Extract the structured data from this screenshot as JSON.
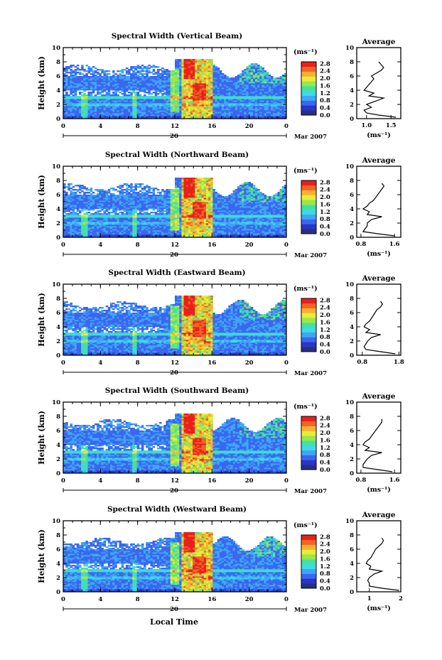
{
  "page": {
    "xlabel": "Local Time",
    "date_label": "20",
    "month_label": "Mar 2007"
  },
  "colorbar": {
    "unit": "(ms⁻¹)",
    "ticks": [
      "0.0",
      "0.4",
      "0.8",
      "1.2",
      "1.6",
      "2.0",
      "2.4",
      "2.8"
    ],
    "colors": [
      "#2a2f7e",
      "#2b35c7",
      "#3a67f0",
      "#3fa6f5",
      "#3fd8e8",
      "#44e0a0",
      "#98e84a",
      "#e8ec3c",
      "#f8b030",
      "#f26424",
      "#e8201c"
    ]
  },
  "chart_data": [
    {
      "type": "heatmap",
      "title": "Spectral Width (Vertical Beam)",
      "ylabel": "Height (km)",
      "xticks": [
        "0",
        "4",
        "8",
        "12",
        "16",
        "20",
        "0"
      ],
      "yticks": [
        "0",
        "2",
        "4",
        "6",
        "8",
        "10"
      ],
      "xlim": [
        0,
        24
      ],
      "ylim": [
        0,
        10
      ],
      "clim": [
        0,
        2.8
      ],
      "profile": {
        "title": "Average",
        "xlabel": "(ms⁻¹)",
        "xticks": [
          "1.0",
          "1.5"
        ],
        "xtick_values": [
          1.0,
          1.5
        ],
        "xlim": [
          0.8,
          1.7
        ],
        "heights": [
          0.2,
          0.5,
          0.8,
          1.2,
          1.6,
          2.0,
          2.5,
          2.9,
          3.2,
          3.6,
          4.0,
          4.4,
          4.8,
          5.2,
          5.6,
          6.0,
          6.4,
          6.8,
          7.2,
          7.6,
          8.0
        ],
        "values": [
          1.6,
          1.25,
          1.0,
          0.95,
          1.1,
          1.0,
          1.2,
          1.35,
          1.05,
          1.15,
          0.95,
          1.0,
          1.05,
          1.1,
          1.15,
          1.1,
          1.2,
          1.3,
          1.35,
          1.3,
          1.25
        ]
      }
    },
    {
      "type": "heatmap",
      "title": "Spectral Width (Northward Beam)",
      "ylabel": "Height (km)",
      "xticks": [
        "0",
        "4",
        "8",
        "12",
        "16",
        "20",
        "0"
      ],
      "yticks": [
        "0",
        "2",
        "4",
        "6",
        "8",
        "10"
      ],
      "xlim": [
        0,
        24
      ],
      "ylim": [
        0,
        10
      ],
      "clim": [
        0,
        2.8
      ],
      "profile": {
        "title": "Average",
        "xlabel": "(ms⁻¹)",
        "xticks": [
          "0.8",
          "1.6"
        ],
        "xtick_values": [
          0.8,
          1.6
        ],
        "xlim": [
          0.7,
          1.75
        ],
        "heights": [
          0.2,
          0.5,
          0.8,
          1.2,
          1.6,
          2.0,
          2.5,
          2.9,
          3.2,
          3.6,
          4.0,
          4.4,
          4.8,
          5.2,
          5.6,
          6.0,
          6.4,
          6.8,
          7.2,
          7.6
        ],
        "values": [
          1.6,
          1.2,
          0.85,
          0.9,
          0.95,
          0.95,
          1.05,
          1.3,
          0.95,
          1.0,
          0.85,
          0.95,
          1.0,
          1.1,
          1.15,
          1.2,
          1.25,
          1.3,
          1.35,
          1.3
        ]
      }
    },
    {
      "type": "heatmap",
      "title": "Spectral Width (Eastward Beam)",
      "ylabel": "Height (km)",
      "xticks": [
        "0",
        "4",
        "8",
        "12",
        "16",
        "20",
        "0"
      ],
      "yticks": [
        "0",
        "2",
        "4",
        "6",
        "8",
        "10"
      ],
      "xlim": [
        0,
        24
      ],
      "ylim": [
        0,
        10
      ],
      "clim": [
        0,
        2.8
      ],
      "profile": {
        "title": "Average",
        "xlabel": "",
        "xticks": [
          "0.8",
          "1.8"
        ],
        "xtick_values": [
          0.8,
          1.8
        ],
        "xlim": [
          0.65,
          1.85
        ],
        "heights": [
          0.2,
          0.5,
          0.8,
          1.2,
          1.6,
          2.0,
          2.5,
          2.9,
          3.2,
          3.6,
          4.0,
          4.4,
          4.8,
          5.2,
          5.6,
          6.0,
          6.4,
          6.8,
          7.2,
          7.6
        ],
        "values": [
          1.7,
          1.3,
          0.9,
          0.85,
          0.9,
          0.95,
          1.05,
          1.3,
          0.9,
          1.0,
          0.85,
          0.9,
          1.0,
          1.05,
          1.1,
          1.15,
          1.2,
          1.3,
          1.35,
          1.3
        ]
      }
    },
    {
      "type": "heatmap",
      "title": "Spectral Width (Southward Beam)",
      "ylabel": "Height (km)",
      "xticks": [
        "0",
        "4",
        "8",
        "12",
        "16",
        "20",
        "0"
      ],
      "yticks": [
        "0",
        "2",
        "4",
        "6",
        "8",
        "10"
      ],
      "xlim": [
        0,
        24
      ],
      "ylim": [
        0,
        10
      ],
      "clim": [
        0,
        2.8
      ],
      "profile": {
        "title": "Average",
        "xlabel": "(ms⁻¹)",
        "xticks": [
          "0.8",
          "1.6"
        ],
        "xtick_values": [
          0.8,
          1.6
        ],
        "xlim": [
          0.7,
          1.75
        ],
        "heights": [
          0.2,
          0.5,
          0.8,
          1.2,
          1.6,
          2.0,
          2.5,
          2.9,
          3.2,
          3.6,
          4.0,
          4.4,
          4.8,
          5.2,
          5.6,
          6.0,
          6.4,
          6.8,
          7.2,
          7.6
        ],
        "values": [
          1.55,
          1.2,
          0.85,
          0.85,
          0.9,
          0.95,
          1.05,
          1.3,
          0.9,
          1.0,
          0.85,
          0.9,
          1.0,
          1.05,
          1.1,
          1.15,
          1.2,
          1.25,
          1.3,
          1.3
        ]
      }
    },
    {
      "type": "heatmap",
      "title": "Spectral Width (Westward Beam)",
      "ylabel": "Height (km)",
      "xticks": [
        "0",
        "4",
        "8",
        "12",
        "16",
        "20",
        "0"
      ],
      "yticks": [
        "0",
        "2",
        "4",
        "6",
        "8",
        "10"
      ],
      "xlim": [
        0,
        24
      ],
      "ylim": [
        0,
        10
      ],
      "clim": [
        0,
        2.8
      ],
      "profile": {
        "title": "Average",
        "xlabel": "(ms⁻¹)",
        "xticks": [
          "1",
          "2"
        ],
        "xtick_values": [
          1,
          2
        ],
        "xlim": [
          0.6,
          2.0
        ],
        "heights": [
          0.2,
          0.5,
          0.8,
          1.2,
          1.6,
          2.0,
          2.5,
          2.9,
          3.2,
          3.6,
          4.0,
          4.4,
          4.8,
          5.2,
          5.6,
          6.0,
          6.4,
          6.8,
          7.2,
          7.6
        ],
        "values": [
          1.95,
          1.4,
          1.0,
          1.0,
          0.95,
          1.0,
          1.15,
          1.4,
          1.0,
          1.05,
          0.9,
          0.95,
          1.05,
          1.1,
          1.15,
          1.2,
          1.3,
          1.4,
          1.45,
          1.4
        ]
      }
    }
  ]
}
